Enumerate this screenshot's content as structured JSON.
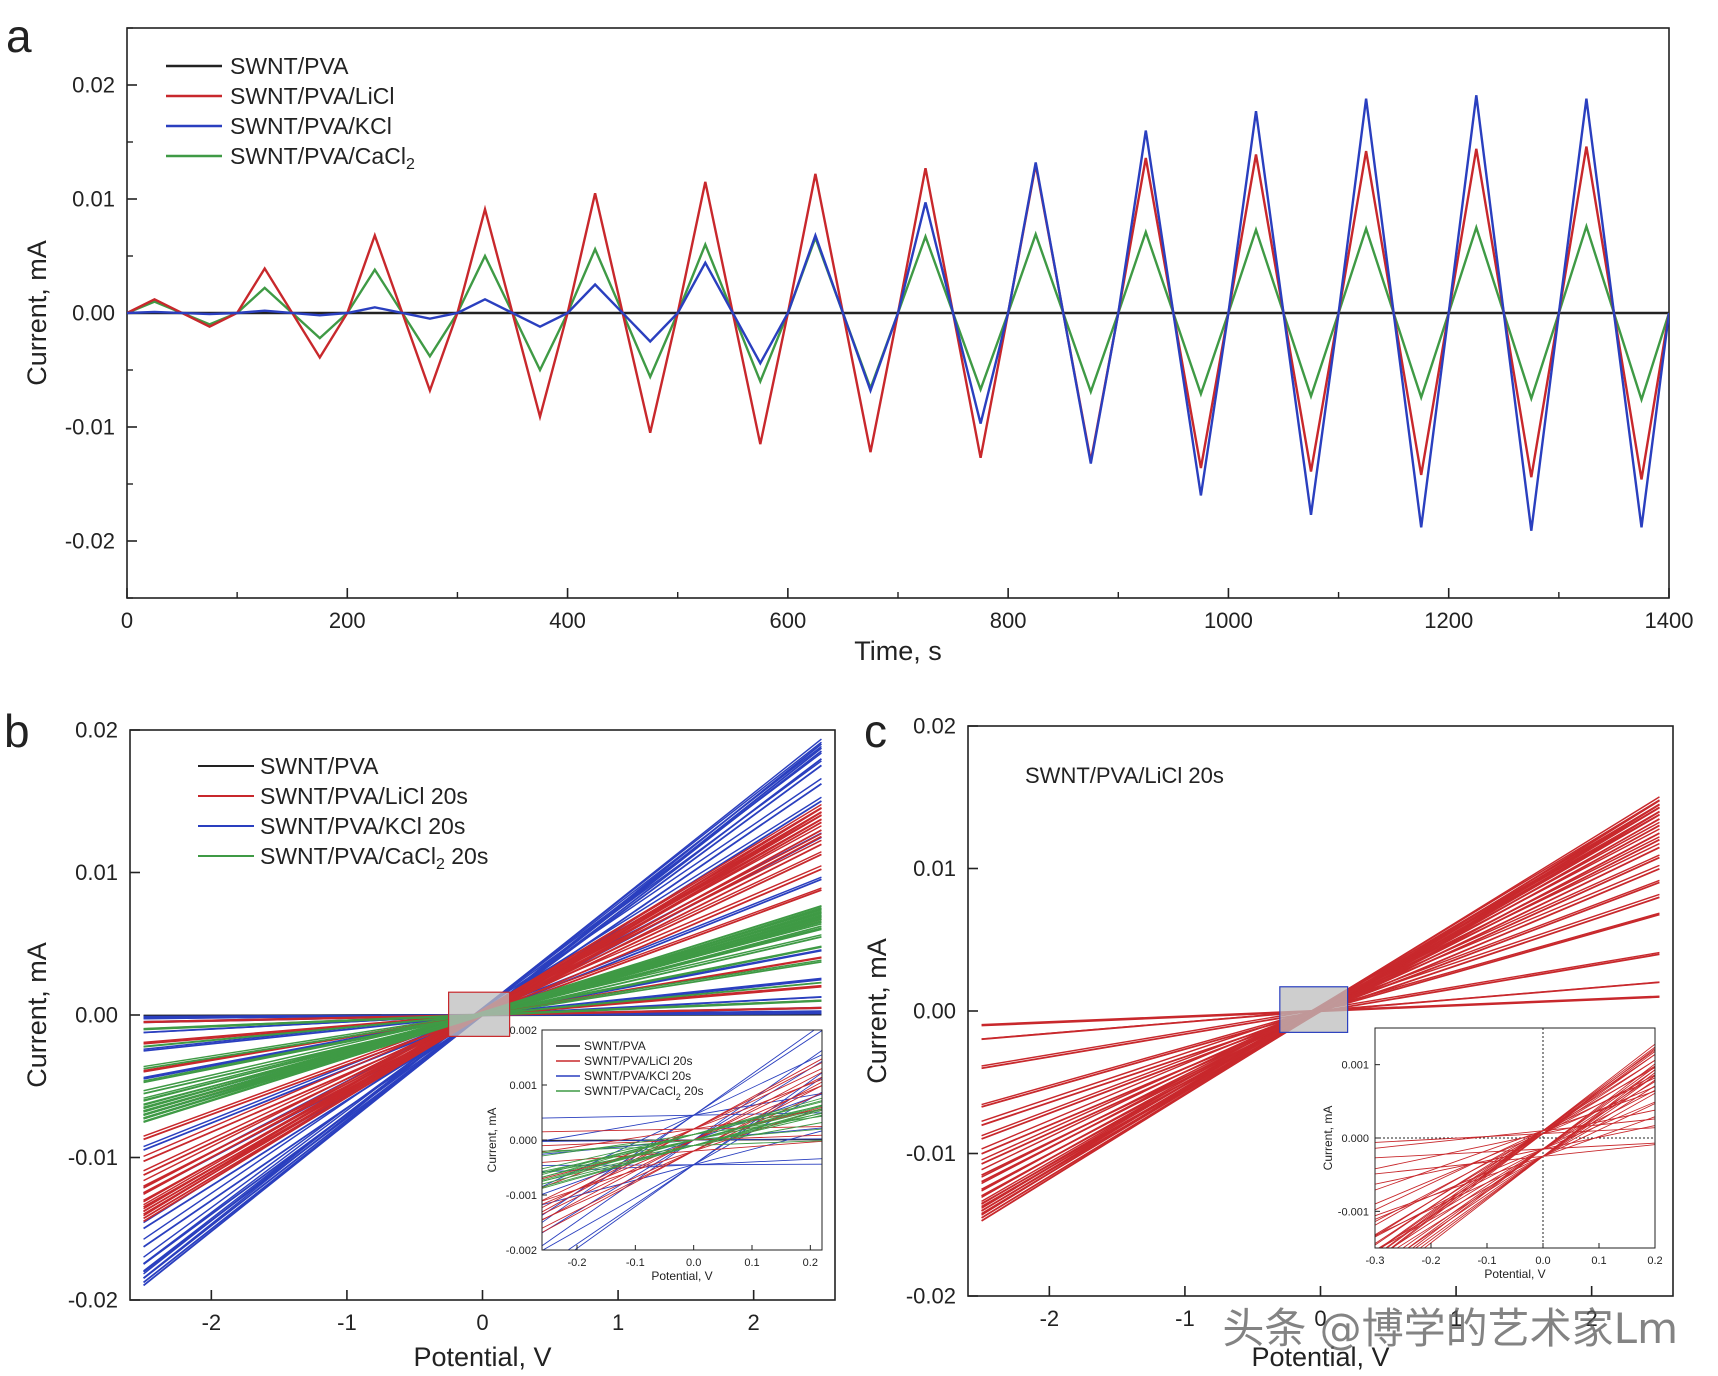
{
  "colors": {
    "black": "#222222",
    "red": "#c8282c",
    "blue": "#2a3fbf",
    "green": "#3f9a45"
  },
  "watermark": "头条 @博学的艺术家Lm",
  "chart_data": [
    {
      "id": "a",
      "panel_label": "a",
      "type": "line",
      "xlabel": "Time, s",
      "ylabel": "Current, mA",
      "xlim": [
        0,
        1400
      ],
      "ylim": [
        -0.025,
        0.025
      ],
      "xticks": [
        0,
        200,
        400,
        600,
        800,
        1000,
        1200,
        1400
      ],
      "xtick_labels": [
        "0",
        "200",
        "400",
        "600",
        "800",
        "1000",
        "1200",
        "1400"
      ],
      "yticks": [
        -0.02,
        -0.01,
        0.0,
        0.01,
        0.02
      ],
      "ytick_labels": [
        "-0.02",
        "-0.01",
        "0.00",
        "0.01",
        "0.02"
      ],
      "legend_position": "top-left",
      "period_s": 100,
      "series": [
        {
          "name": "SWNT/PVA",
          "color": "#222222",
          "amplitudes": [
            0,
            0,
            0,
            0,
            0,
            0,
            0,
            0,
            0,
            0,
            0,
            0,
            0,
            0
          ]
        },
        {
          "name": "SWNT/PVA/LiCl",
          "color": "#c8282c",
          "amplitudes": [
            0.0012,
            0.0039,
            0.0068,
            0.0091,
            0.0105,
            0.0115,
            0.0122,
            0.0127,
            0.013,
            0.0136,
            0.0139,
            0.0142,
            0.0144,
            0.0146
          ]
        },
        {
          "name": "SWNT/PVA/KCl",
          "color": "#2a3fbf",
          "amplitudes": [
            0.0001,
            0.0002,
            0.0005,
            0.0012,
            0.0025,
            0.0044,
            0.0068,
            0.0097,
            0.0132,
            0.016,
            0.0177,
            0.0188,
            0.0191,
            0.0188
          ]
        },
        {
          "name": "SWNT/PVA/CaCl2",
          "color": "#3f9a45",
          "amplitudes": [
            0.001,
            0.0022,
            0.0038,
            0.005,
            0.0056,
            0.006,
            0.0066,
            0.0067,
            0.0069,
            0.0071,
            0.0073,
            0.0074,
            0.0075,
            0.0076
          ]
        }
      ]
    },
    {
      "id": "b",
      "panel_label": "b",
      "type": "line",
      "xlabel": "Potential, V",
      "ylabel": "Current, mA",
      "xlim": [
        -2.6,
        2.6
      ],
      "ylim": [
        -0.02,
        0.02
      ],
      "xticks": [
        -2,
        -1,
        0,
        1,
        2
      ],
      "xtick_labels": [
        "-2",
        "-1",
        "0",
        "1",
        "2"
      ],
      "yticks": [
        -0.02,
        -0.01,
        0.0,
        0.01,
        0.02
      ],
      "ytick_labels": [
        "-0.02",
        "-0.01",
        "0.00",
        "0.01",
        "0.02"
      ],
      "legend_position": "top-left",
      "potential_range": [
        -2.5,
        2.5
      ],
      "series": [
        {
          "name": "SWNT/PVA",
          "color": "#222222",
          "slopes": [
            2e-05,
            4e-05
          ]
        },
        {
          "name": "SWNT/PVA/LiCl 20s",
          "color": "#c8282c",
          "slopes": [
            0.0002,
            0.0004,
            0.0008,
            0.0016,
            0.0027,
            0.0035,
            0.0041,
            0.0045,
            0.0048,
            0.005,
            0.0052,
            0.0054,
            0.0055,
            0.0056,
            0.0057,
            0.0058
          ]
        },
        {
          "name": "SWNT/PVA/KCl 20s",
          "color": "#2a3fbf",
          "slopes": [
            5e-05,
            0.0001,
            0.0002,
            0.0005,
            0.001,
            0.0018,
            0.0028,
            0.0038,
            0.005,
            0.006,
            0.0065,
            0.007,
            0.0072,
            0.0074,
            0.0075,
            0.0076
          ]
        },
        {
          "name": "SWNT/PVA/CaCl2 20s",
          "color": "#3f9a45",
          "slopes": [
            0.0004,
            0.0009,
            0.0015,
            0.0019,
            0.0022,
            0.0024,
            0.0025,
            0.0026,
            0.0027,
            0.0027,
            0.0028,
            0.0028,
            0.0029,
            0.0029,
            0.003,
            0.003
          ]
        }
      ],
      "highlight_box": {
        "x": [
          -0.25,
          0.2
        ],
        "y": [
          -0.0015,
          0.0016
        ]
      },
      "inset": {
        "xlabel": "Potential, V",
        "ylabel": "Current, mA",
        "xlim": [
          -0.26,
          0.22
        ],
        "ylim": [
          -0.002,
          0.002
        ],
        "xticks": [
          -0.2,
          -0.1,
          0.0,
          0.1,
          0.2
        ],
        "xtick_labels": [
          "-0.2",
          "-0.1",
          "0.0",
          "0.1",
          "0.2"
        ],
        "yticks": [
          -0.002,
          -0.001,
          0.0,
          0.001,
          0.002
        ],
        "ytick_labels": [
          "-0.002",
          "-0.001",
          "0.000",
          "0.001",
          "0.002"
        ],
        "legend": [
          "SWNT/PVA",
          "SWNT/PVA/LiCl 20s",
          "SWNT/PVA/KCl 20s",
          "SWNT/PVA/CaCl2 20s"
        ]
      }
    },
    {
      "id": "c",
      "panel_label": "c",
      "type": "line",
      "xlabel": "Potential, V",
      "ylabel": "Current, mA",
      "xlim": [
        -2.6,
        2.6
      ],
      "ylim": [
        -0.02,
        0.02
      ],
      "xticks": [
        -2,
        -1,
        0,
        1,
        2
      ],
      "xtick_labels": [
        "-2",
        "-1",
        "0",
        "1",
        "2"
      ],
      "yticks": [
        -0.02,
        -0.01,
        0.0,
        0.01,
        0.02
      ],
      "ytick_labels": [
        "-0.02",
        "-0.01",
        "0.00",
        "0.01",
        "0.02"
      ],
      "annotation": "SWNT/PVA/LiCl 20s",
      "potential_range": [
        -2.5,
        2.5
      ],
      "series": [
        {
          "name": "SWNT/PVA/LiCl 20s",
          "color": "#c8282c",
          "slopes": [
            0.0004,
            0.0008,
            0.0016,
            0.0027,
            0.0032,
            0.0036,
            0.004,
            0.0043,
            0.0046,
            0.0048,
            0.005,
            0.0052,
            0.0054,
            0.0055,
            0.0056,
            0.0057,
            0.0058,
            0.0059
          ]
        }
      ],
      "highlight_box": {
        "x": [
          -0.3,
          0.2
        ],
        "y": [
          -0.0015,
          0.0017
        ]
      },
      "inset": {
        "xlim": [
          -0.3,
          0.2
        ],
        "ylim": [
          -0.0015,
          0.0015
        ],
        "xticks": [
          -0.3,
          -0.2,
          -0.1,
          0.0,
          0.1,
          0.2
        ],
        "xtick_labels": [
          "-0.3",
          "-0.2",
          "-0.1",
          "0.0",
          "0.1",
          "0.2"
        ],
        "yticks": [
          -0.001,
          0.0,
          0.001
        ],
        "ytick_labels": [
          "-0.001",
          "0.000",
          "0.001"
        ],
        "xlabel": "Potential, V",
        "ylabel": "Current, mA"
      }
    }
  ]
}
